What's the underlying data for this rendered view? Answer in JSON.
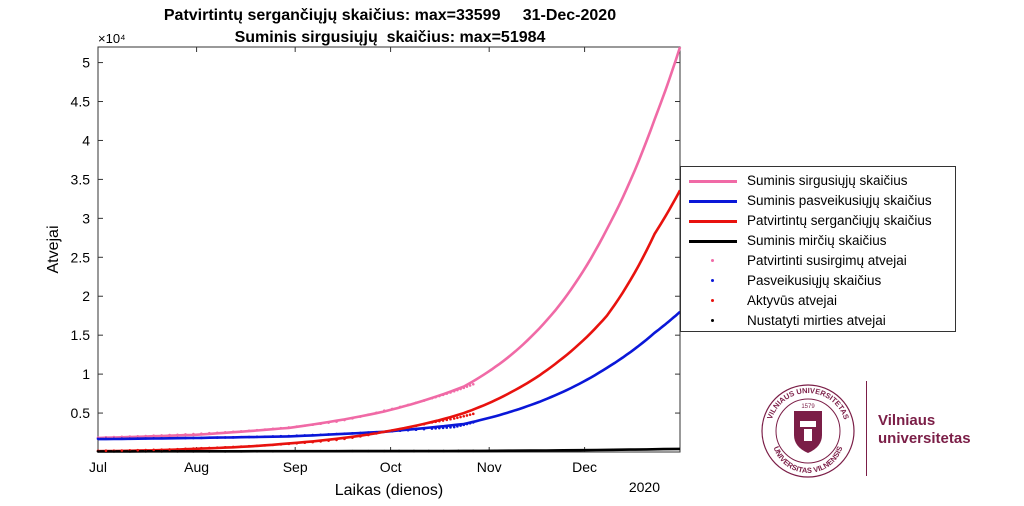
{
  "titles": {
    "line1": "Patvirtintų sergančiųjų skaičius: max=33599     31-Dec-2020",
    "line2": "Suminis sirgusiųjų  skaičius: max=51984"
  },
  "chart_data": {
    "type": "line",
    "xlabel": "Laikas (dienos)",
    "ylabel": "Atvejai",
    "y_exponent_label": "×10⁴",
    "year_label": "2020",
    "x_ticks": [
      "Jul",
      "Aug",
      "Sep",
      "Oct",
      "Nov",
      "Dec"
    ],
    "x_range_days": [
      0,
      183
    ],
    "y_range": [
      0,
      52000
    ],
    "y_ticks": [
      0.5,
      1,
      1.5,
      2,
      2.5,
      3,
      3.5,
      4,
      4.5,
      5
    ],
    "y_tick_labels": [
      "0.5",
      "1",
      "1.5",
      "2",
      "2.5",
      "3",
      "3.5",
      "4",
      "4.5",
      "5"
    ],
    "x_ticks_days": [
      0,
      31,
      62,
      92,
      123,
      153
    ],
    "grid": false,
    "legend_position": "right",
    "series": [
      {
        "name": "Suminis sirgusiųjų skaičius",
        "style": "line",
        "color": "#f06aa6",
        "x": [
          0,
          30,
          60,
          90,
          115,
          130,
          145,
          160,
          175,
          183
        ],
        "y": [
          1800,
          2200,
          3100,
          5200,
          8400,
          12500,
          18800,
          28600,
          42700,
          51984
        ]
      },
      {
        "name": "Suminis pasveikusiųjų skaičius",
        "style": "line",
        "color": "#0a17d8",
        "x": [
          0,
          30,
          60,
          90,
          115,
          130,
          145,
          160,
          175,
          183
        ],
        "y": [
          1650,
          1800,
          2000,
          2600,
          3600,
          5200,
          7500,
          10800,
          15300,
          18000
        ]
      },
      {
        "name": "Patvirtintų sergančiųjų skaičius",
        "style": "line",
        "color": "#e8120e",
        "x": [
          0,
          30,
          60,
          90,
          115,
          130,
          145,
          160,
          175,
          183
        ],
        "y": [
          100,
          400,
          1100,
          2600,
          5000,
          7700,
          11700,
          17500,
          28000,
          33599
        ]
      },
      {
        "name": "Suminis mirčių skaičius",
        "style": "line",
        "color": "#000000",
        "x": [
          0,
          60,
          120,
          183
        ],
        "y": [
          80,
          100,
          140,
          400
        ]
      },
      {
        "name": "Patvirtinti susirgimų atvejai",
        "style": "dots",
        "color": "#f06aa6",
        "x": [
          0,
          15,
          30,
          45,
          60,
          75,
          90,
          105,
          112,
          118
        ],
        "y": [
          1850,
          2050,
          2300,
          2650,
          3150,
          3900,
          5300,
          6900,
          7800,
          8700
        ]
      },
      {
        "name": "Pasveikusiųjų skaičius",
        "style": "dots",
        "color": "#0a17d8",
        "x": [
          0,
          15,
          30,
          45,
          60,
          75,
          90,
          105,
          112,
          118
        ],
        "y": [
          1700,
          1750,
          1800,
          1900,
          2050,
          2300,
          2600,
          3000,
          3200,
          3800
        ]
      },
      {
        "name": "Aktyvūs atvejai",
        "style": "dots",
        "color": "#e8120e",
        "x": [
          0,
          15,
          30,
          45,
          60,
          75,
          90,
          105,
          112,
          118
        ],
        "y": [
          150,
          250,
          450,
          700,
          1050,
          1550,
          2600,
          3800,
          4300,
          4900
        ]
      },
      {
        "name": "Nustatyti mirties atvejai",
        "style": "dots",
        "color": "#000000",
        "x": [
          0,
          30,
          60,
          90,
          118
        ],
        "y": [
          80,
          85,
          95,
          110,
          140
        ]
      }
    ]
  },
  "legend": {
    "items": [
      {
        "label": "Suminis sirgusiųjų skaičius",
        "type": "line",
        "color": "#f06aa6"
      },
      {
        "label": "Suminis pasveikusiųjų skaičius",
        "type": "line",
        "color": "#0a17d8"
      },
      {
        "label": "Patvirtintų sergančiųjų skaičius",
        "type": "line",
        "color": "#e8120e"
      },
      {
        "label": "Suminis mirčių skaičius",
        "type": "line",
        "color": "#000000"
      },
      {
        "label": "Patvirtinti susirgimų atvejai",
        "type": "dot",
        "color": "#f06aa6"
      },
      {
        "label": "Pasveikusiųjų skaičius",
        "type": "dot",
        "color": "#0a17d8"
      },
      {
        "label": "Aktyvūs atvejai",
        "type": "dot",
        "color": "#e8120e"
      },
      {
        "label": "Nustatyti mirties atvejai",
        "type": "dot",
        "color": "#000000"
      }
    ]
  },
  "logo": {
    "name_line1": "Vilniaus",
    "name_line2": "universitetas",
    "seal_text_top": "VILNIAUS UNIVERSITETAS",
    "seal_text_bottom": "UNIVERSITAS VILNENSIS",
    "seal_year": "1579",
    "brand_color": "#7b1e47"
  }
}
